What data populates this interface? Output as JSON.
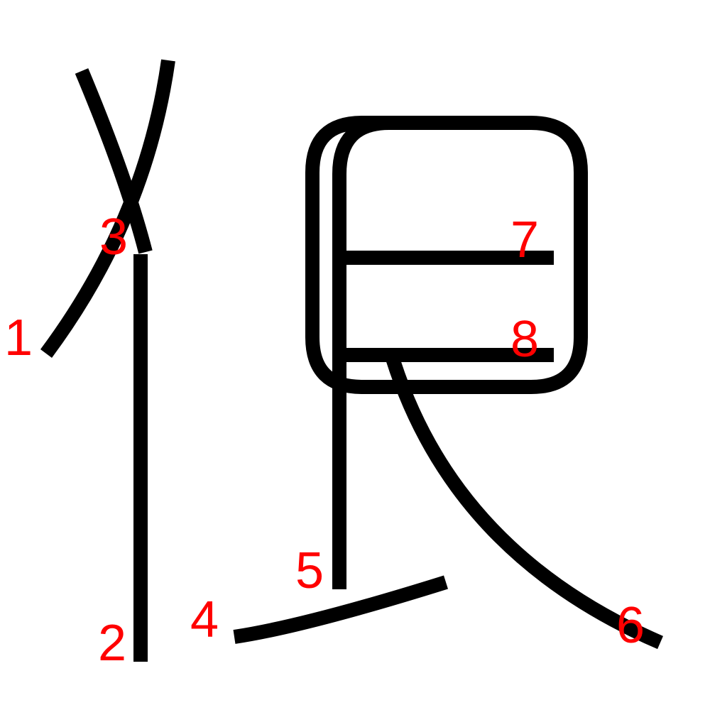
{
  "colors": {
    "stroke": "#000000",
    "label": "#ff0000",
    "background": "#ffffff"
  },
  "strokes": [
    {
      "order": "1",
      "label": "1"
    },
    {
      "order": "2",
      "label": "2"
    },
    {
      "order": "3",
      "label": "3"
    },
    {
      "order": "4",
      "label": "4"
    },
    {
      "order": "5",
      "label": "5"
    },
    {
      "order": "6",
      "label": "6"
    },
    {
      "order": "7",
      "label": "7"
    },
    {
      "order": "8",
      "label": "8"
    }
  ]
}
